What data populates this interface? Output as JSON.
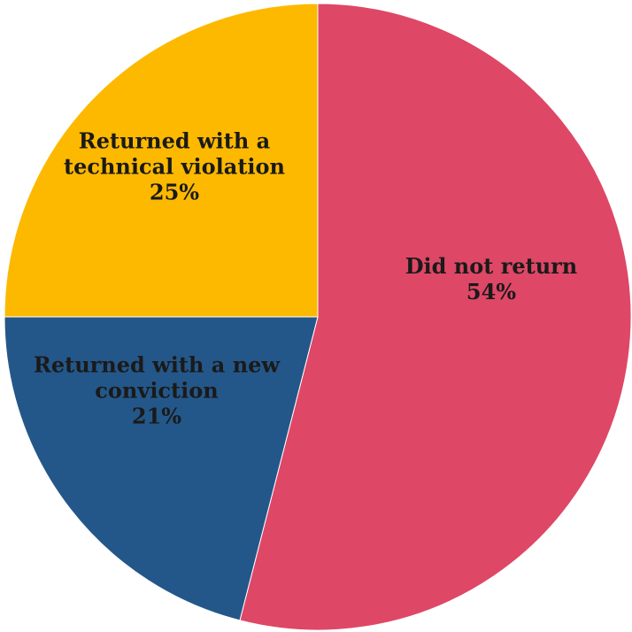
{
  "chart_data": {
    "type": "pie",
    "start": "12 o'clock",
    "direction": "clockwise",
    "slices": [
      {
        "label": [
          "Did not return"
        ],
        "value": 54,
        "value_label": "54%",
        "color": "#de4766"
      },
      {
        "label": [
          "Returned with a new",
          "conviction"
        ],
        "value": 21,
        "value_label": "21%",
        "color": "#245789"
      },
      {
        "label": [
          "Returned with a",
          "technical violation"
        ],
        "value": 25,
        "value_label": "25%",
        "color": "#fdb900"
      }
    ]
  }
}
